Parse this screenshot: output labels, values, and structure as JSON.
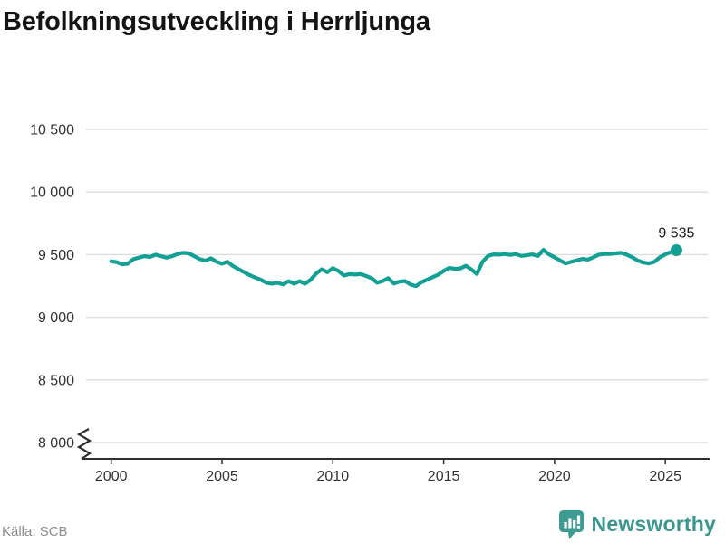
{
  "header": {
    "title": "Befolkningsutveckling i Herrljunga"
  },
  "footer": {
    "source": "Källa: SCB",
    "brand": "Newsworthy"
  },
  "colors": {
    "line": "#12a095",
    "grid": "#dcdcdc",
    "axis": "#2f2f2f",
    "tick_text": "#333333",
    "title_text": "#141414",
    "source_text": "#8d8d8d",
    "brand": "#3a968e",
    "annotation_text": "#1a1a1a"
  },
  "chart_data": {
    "type": "line",
    "title": "Befolkningsutveckling i Herrljunga",
    "source": "SCB",
    "grid": "horizontal",
    "axis_break": true,
    "ylim": [
      8000,
      10500
    ],
    "xlim": [
      1999.3,
      2026.9
    ],
    "x_start": 2000,
    "x_step": 0.25,
    "end_value": 9535,
    "end_label": "9 535",
    "yticks": [
      {
        "v": 10500,
        "label": "10 500"
      },
      {
        "v": 10000,
        "label": "10 000"
      },
      {
        "v": 9500,
        "label": "9 500"
      },
      {
        "v": 9000,
        "label": "9 000"
      },
      {
        "v": 8500,
        "label": "8 500"
      },
      {
        "v": 8000,
        "label": "8 000"
      }
    ],
    "xticks": [
      {
        "v": 2000,
        "label": "2000"
      },
      {
        "v": 2005,
        "label": "2005"
      },
      {
        "v": 2010,
        "label": "2010"
      },
      {
        "v": 2015,
        "label": "2015"
      },
      {
        "v": 2020,
        "label": "2020"
      },
      {
        "v": 2025,
        "label": "2025"
      }
    ],
    "values": [
      9447,
      9440,
      9423,
      9428,
      9464,
      9476,
      9488,
      9481,
      9500,
      9488,
      9476,
      9488,
      9505,
      9515,
      9510,
      9488,
      9464,
      9452,
      9471,
      9444,
      9428,
      9444,
      9408,
      9384,
      9360,
      9336,
      9317,
      9300,
      9276,
      9269,
      9276,
      9262,
      9288,
      9269,
      9288,
      9269,
      9300,
      9350,
      9384,
      9360,
      9392,
      9370,
      9334,
      9345,
      9341,
      9345,
      9330,
      9312,
      9276,
      9290,
      9312,
      9270,
      9285,
      9290,
      9262,
      9249,
      9280,
      9300,
      9320,
      9340,
      9370,
      9394,
      9387,
      9390,
      9411,
      9382,
      9346,
      9442,
      9490,
      9502,
      9500,
      9505,
      9498,
      9505,
      9490,
      9495,
      9502,
      9490,
      9538,
      9502,
      9478,
      9454,
      9430,
      9442,
      9454,
      9466,
      9460,
      9478,
      9500,
      9505,
      9505,
      9510,
      9515,
      9500,
      9480,
      9454,
      9437,
      9430,
      9442,
      9478,
      9502,
      9520,
      9535
    ]
  }
}
